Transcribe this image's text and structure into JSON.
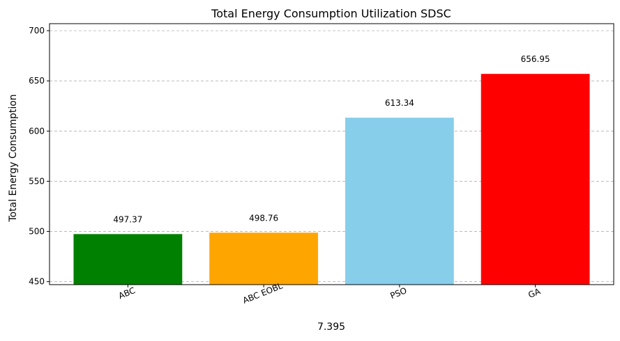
{
  "chart_data": {
    "type": "bar",
    "title": "Total Energy Consumption Utilization SDSC",
    "xlabel": "7.395",
    "ylabel": "Total Energy Consumption",
    "categories": [
      "ABC",
      "ABC EOBL",
      "PSO",
      "GA"
    ],
    "values": [
      497.37,
      498.76,
      613.34,
      656.95
    ],
    "value_labels": [
      "497.37",
      "498.76",
      "613.34",
      "656.95"
    ],
    "colors": [
      "#008000",
      "#FFA500",
      "#87CEEB",
      "#FF0000"
    ],
    "ylim": [
      447,
      707
    ],
    "yticks": [
      450,
      500,
      550,
      600,
      650,
      700
    ],
    "ytick_labels": [
      "450",
      "500",
      "550",
      "600",
      "650",
      "700"
    ],
    "grid": "y-dashed",
    "x_tick_rotation_deg": 22
  }
}
